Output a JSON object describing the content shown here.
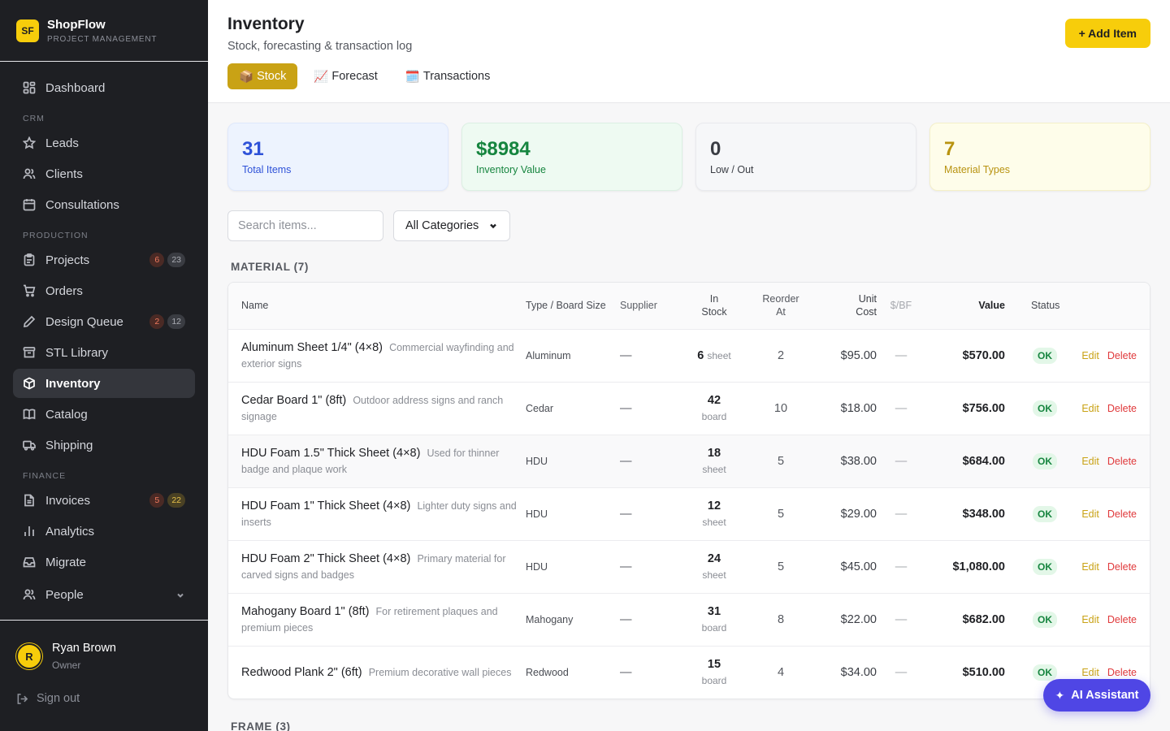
{
  "brand": {
    "logo": "SF",
    "name": "ShopFlow",
    "subtitle": "PROJECT MANAGEMENT"
  },
  "sidebar": {
    "dashboard": "Dashboard",
    "crm_title": "CRM",
    "leads": "Leads",
    "clients": "Clients",
    "consultations": "Consultations",
    "production_title": "PRODUCTION",
    "projects": {
      "label": "Projects",
      "badge_a": "6",
      "badge_b": "23"
    },
    "orders": "Orders",
    "design_queue": {
      "label": "Design Queue",
      "badge_a": "2",
      "badge_b": "12"
    },
    "stl_library": "STL Library",
    "inventory": "Inventory",
    "catalog": "Catalog",
    "shipping": "Shipping",
    "finance_title": "FINANCE",
    "invoices": {
      "label": "Invoices",
      "badge_a": "5",
      "badge_b": "22"
    },
    "analytics": "Analytics",
    "migrate": "Migrate",
    "people": "People"
  },
  "user": {
    "initial": "R",
    "name": "Ryan Brown",
    "role": "Owner",
    "signout": "Sign out"
  },
  "header": {
    "title": "Inventory",
    "subtitle": "Stock, forecasting & transaction log",
    "add_button": "+ Add Item",
    "tabs": [
      {
        "icon": "📦",
        "label": "Stock"
      },
      {
        "icon": "📈",
        "label": "Forecast"
      },
      {
        "icon": "🗓️",
        "label": "Transactions"
      }
    ]
  },
  "stats": [
    {
      "value": "31",
      "label": "Total Items"
    },
    {
      "value": "$8984",
      "label": "Inventory Value"
    },
    {
      "value": "0",
      "label": "Low / Out"
    },
    {
      "value": "7",
      "label": "Material Types"
    }
  ],
  "filters": {
    "search_placeholder": "Search items...",
    "category": "All Categories"
  },
  "groups": [
    {
      "title": "MATERIAL (7)"
    },
    {
      "title": "FRAME (3)"
    }
  ],
  "table": {
    "headers": {
      "name": "Name",
      "type": "Type / Board Size",
      "supplier": "Supplier",
      "stock": "In Stock",
      "reorder": "Reorder At",
      "unit_cost": "Unit Cost",
      "per_bf": "$/BF",
      "value": "Value",
      "status": "Status"
    },
    "rows": [
      {
        "name": "Aluminum Sheet 1/4\" (4×8)",
        "desc": "Commercial wayfinding and exterior signs",
        "type": "Aluminum",
        "supplier": "—",
        "stock": "6",
        "unit": "sheet",
        "reorder": "2",
        "unit_cost": "$95.00",
        "per_bf": "—",
        "value": "$570.00",
        "status": "OK",
        "edit": "Edit",
        "delete": "Delete"
      },
      {
        "name": "Cedar Board 1\" (8ft)",
        "desc": "Outdoor address signs and ranch signage",
        "type": "Cedar",
        "supplier": "—",
        "stock": "42",
        "unit": "board",
        "reorder": "10",
        "unit_cost": "$18.00",
        "per_bf": "—",
        "value": "$756.00",
        "status": "OK",
        "edit": "Edit",
        "delete": "Delete"
      },
      {
        "name": "HDU Foam 1.5\" Thick Sheet (4×8)",
        "desc": "Used for thinner badge and plaque work",
        "type": "HDU",
        "supplier": "—",
        "stock": "18",
        "unit": "sheet",
        "reorder": "5",
        "unit_cost": "$38.00",
        "per_bf": "—",
        "value": "$684.00",
        "status": "OK",
        "edit": "Edit",
        "delete": "Delete"
      },
      {
        "name": "HDU Foam 1\" Thick Sheet (4×8)",
        "desc": "Lighter duty signs and inserts",
        "type": "HDU",
        "supplier": "—",
        "stock": "12",
        "unit": "sheet",
        "reorder": "5",
        "unit_cost": "$29.00",
        "per_bf": "—",
        "value": "$348.00",
        "status": "OK",
        "edit": "Edit",
        "delete": "Delete"
      },
      {
        "name": "HDU Foam 2\" Thick Sheet (4×8)",
        "desc": "Primary material for carved signs and badges",
        "type": "HDU",
        "supplier": "—",
        "stock": "24",
        "unit": "sheet",
        "reorder": "5",
        "unit_cost": "$45.00",
        "per_bf": "—",
        "value": "$1,080.00",
        "status": "OK",
        "edit": "Edit",
        "delete": "Delete"
      },
      {
        "name": "Mahogany Board 1\" (8ft)",
        "desc": "For retirement plaques and premium pieces",
        "type": "Mahogany",
        "supplier": "—",
        "stock": "31",
        "unit": "board",
        "reorder": "8",
        "unit_cost": "$22.00",
        "per_bf": "—",
        "value": "$682.00",
        "status": "OK",
        "edit": "Edit",
        "delete": "Delete"
      },
      {
        "name": "Redwood Plank 2\" (6ft)",
        "desc": "Premium decorative wall pieces",
        "type": "Redwood",
        "supplier": "—",
        "stock": "15",
        "unit": "board",
        "reorder": "4",
        "unit_cost": "$34.00",
        "per_bf": "—",
        "value": "$510.00",
        "status": "OK",
        "edit": "Edit",
        "delete": "Delete"
      }
    ]
  },
  "ai_assistant": {
    "icon": "sparkle-icon",
    "label": "AI Assistant"
  },
  "colors": {
    "accent": "#f7cd0b",
    "tab_active": "#c9a215",
    "sidebar_bg": "#1e1f23",
    "ai_button": "#4f46e5",
    "delete": "#e0393b",
    "ok_green": "#16853f"
  }
}
